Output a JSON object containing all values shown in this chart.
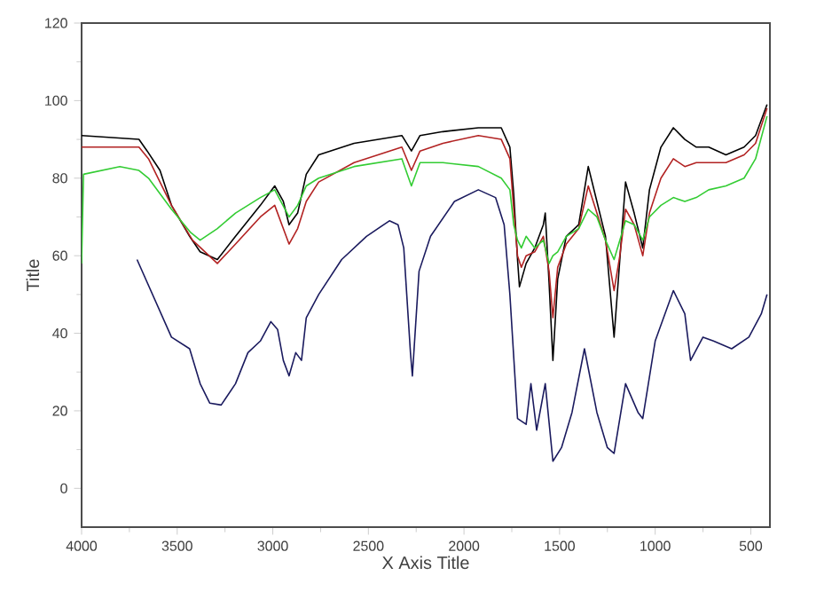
{
  "chart_data": {
    "type": "line",
    "xlabel": "X Axis Title",
    "ylabel": "Title",
    "xlim": [
      4000,
      400
    ],
    "ylim": [
      -10,
      120
    ],
    "xticks": [
      4000,
      3500,
      3000,
      2500,
      2000,
      1500,
      1000,
      500
    ],
    "yticks": [
      0,
      20,
      40,
      60,
      80,
      100,
      120
    ],
    "marker": "none",
    "line_style": "solid",
    "series": [
      {
        "color": "#000000",
        "x": [
          4000,
          3700,
          3657,
          3590,
          3530,
          3435,
          3380,
          3290,
          3195,
          3065,
          2990,
          2945,
          2915,
          2870,
          2825,
          2760,
          2575,
          2325,
          2275,
          2230,
          2110,
          1925,
          1805,
          1760,
          1740,
          1720,
          1710,
          1675,
          1630,
          1585,
          1575,
          1555,
          1535,
          1510,
          1465,
          1400,
          1350,
          1305,
          1260,
          1215,
          1185,
          1155,
          1110,
          1065,
          1030,
          970,
          905,
          845,
          785,
          720,
          630,
          535,
          475,
          415
        ],
        "values": [
          91,
          90,
          87,
          82,
          73,
          65,
          61,
          59,
          65,
          73,
          78,
          74,
          68,
          71,
          81,
          86,
          89,
          91,
          87,
          91,
          92,
          93,
          93,
          88,
          76,
          59,
          52,
          58,
          62,
          68,
          71,
          53,
          33,
          54,
          65,
          68,
          83,
          74,
          65,
          39,
          59,
          79,
          71,
          62,
          77,
          88,
          93,
          90,
          88,
          88,
          86,
          88,
          91,
          99
        ]
      },
      {
        "color": "#b22222",
        "x": [
          4000,
          3700,
          3650,
          3530,
          3420,
          3290,
          3195,
          3065,
          2990,
          2915,
          2870,
          2825,
          2760,
          2575,
          2325,
          2275,
          2230,
          2110,
          1925,
          1805,
          1760,
          1740,
          1720,
          1700,
          1675,
          1630,
          1585,
          1555,
          1535,
          1510,
          1465,
          1400,
          1350,
          1305,
          1260,
          1215,
          1185,
          1155,
          1110,
          1065,
          1030,
          970,
          905,
          845,
          785,
          720,
          630,
          535,
          475,
          415
        ],
        "values": [
          88,
          88,
          85,
          73,
          64,
          58,
          63,
          70,
          73,
          63,
          67,
          74,
          79,
          84,
          88,
          82,
          87,
          89,
          91,
          90,
          85,
          72,
          60,
          57,
          60,
          61,
          65,
          56,
          44,
          57,
          63,
          67,
          78,
          71,
          64,
          51,
          60,
          72,
          68,
          60,
          71,
          80,
          85,
          83,
          84,
          84,
          84,
          86,
          89,
          98
        ]
      },
      {
        "color": "#33cc33",
        "x": [
          4000,
          3990,
          3800,
          3700,
          3650,
          3590,
          3530,
          3430,
          3380,
          3290,
          3195,
          3065,
          2990,
          2915,
          2870,
          2825,
          2760,
          2575,
          2325,
          2275,
          2230,
          2110,
          1925,
          1805,
          1760,
          1740,
          1720,
          1700,
          1675,
          1630,
          1585,
          1555,
          1535,
          1510,
          1465,
          1400,
          1350,
          1305,
          1260,
          1215,
          1185,
          1155,
          1110,
          1065,
          1030,
          970,
          905,
          845,
          785,
          720,
          630,
          535,
          475,
          415
        ],
        "values": [
          58,
          81,
          83,
          82,
          80,
          76,
          72,
          66,
          64,
          67,
          71,
          75,
          77,
          70,
          73,
          78,
          80,
          83,
          85,
          78,
          84,
          84,
          83,
          80,
          77,
          68,
          64,
          62,
          65,
          62,
          64,
          58,
          60,
          61,
          65,
          67,
          72,
          70,
          64,
          59,
          64,
          69,
          68,
          64,
          70,
          73,
          75,
          74,
          75,
          77,
          78,
          80,
          85,
          96
        ]
      },
      {
        "color": "#1a1a5e",
        "x": [
          3710,
          3530,
          3435,
          3380,
          3330,
          3270,
          3195,
          3130,
          3065,
          3010,
          2975,
          2945,
          2915,
          2880,
          2850,
          2825,
          2760,
          2640,
          2510,
          2390,
          2345,
          2315,
          2280,
          2270,
          2235,
          2175,
          2050,
          1925,
          1835,
          1790,
          1760,
          1720,
          1675,
          1650,
          1620,
          1575,
          1535,
          1490,
          1435,
          1370,
          1305,
          1250,
          1215,
          1155,
          1090,
          1065,
          1000,
          905,
          845,
          815,
          750,
          695,
          600,
          510,
          445,
          415
        ],
        "values": [
          59,
          39,
          36,
          27,
          22,
          21.5,
          27,
          35,
          38,
          43,
          41,
          33,
          29,
          35,
          33,
          44,
          50,
          59,
          65,
          69,
          68,
          62,
          35,
          29,
          56,
          65,
          74,
          77,
          75,
          68,
          50,
          18,
          16.5,
          27,
          15,
          27,
          7,
          10.5,
          19.6,
          36,
          19.6,
          10.5,
          9,
          27,
          19.6,
          18,
          38,
          51,
          45,
          33,
          39,
          38,
          36,
          39,
          45,
          50
        ]
      }
    ]
  }
}
